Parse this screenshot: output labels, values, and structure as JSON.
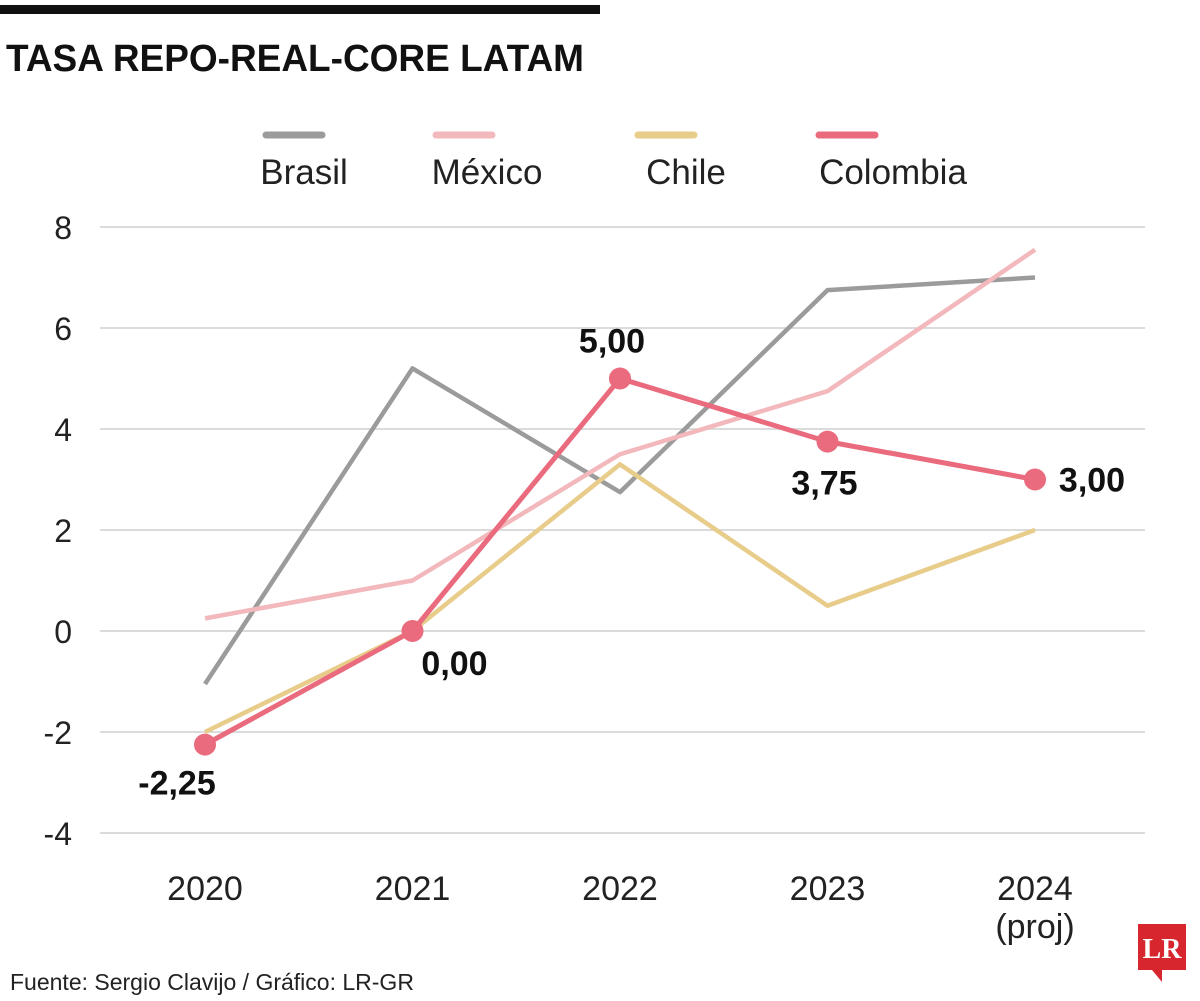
{
  "chart_data": {
    "type": "line",
    "title": "TASA REPO-REAL-CORE LATAM",
    "categories": [
      "2020",
      "2021",
      "2022",
      "2023",
      "2024 (proj)"
    ],
    "series": [
      {
        "name": "Brasil",
        "color": "#9b9b9b",
        "values": [
          -1.05,
          5.2,
          2.75,
          6.75,
          7.0
        ]
      },
      {
        "name": "México",
        "color": "#f2b8bc",
        "values": [
          0.25,
          1.0,
          3.5,
          4.75,
          7.55
        ]
      },
      {
        "name": "Chile",
        "color": "#e8cc8a",
        "values": [
          -2.0,
          0.0,
          3.3,
          0.5,
          2.0
        ]
      },
      {
        "name": "Colombia",
        "color": "#e96b7d",
        "values": [
          -2.25,
          0.0,
          5.0,
          3.75,
          3.0
        ],
        "value_labels": [
          "-2,25",
          "0,00",
          "5,00",
          "3,75",
          "3,00"
        ]
      }
    ],
    "ylim": [
      -4,
      8
    ],
    "yticks": [
      -4,
      -2,
      0,
      2,
      4,
      6,
      8
    ],
    "grid": true,
    "source": "Fuente: Sergio Clavijo / Gráfico: LR-GR",
    "logo": "LR"
  }
}
